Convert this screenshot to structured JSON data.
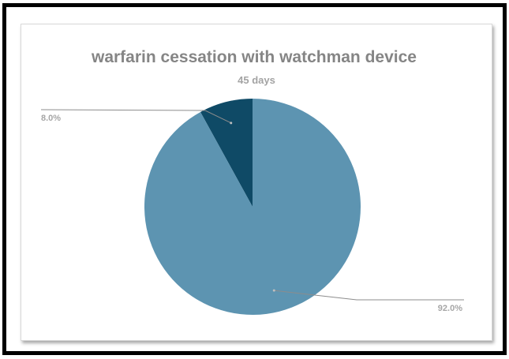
{
  "chart_data": {
    "type": "pie",
    "title": "warfarin cessation with watchman device",
    "subtitle": "45 days",
    "slices": [
      {
        "value": 8.0,
        "label": "8.0%",
        "color": "#0f4a66"
      },
      {
        "value": 92.0,
        "label": "92.0%",
        "color": "#5d94b1"
      }
    ],
    "legend": "none"
  }
}
